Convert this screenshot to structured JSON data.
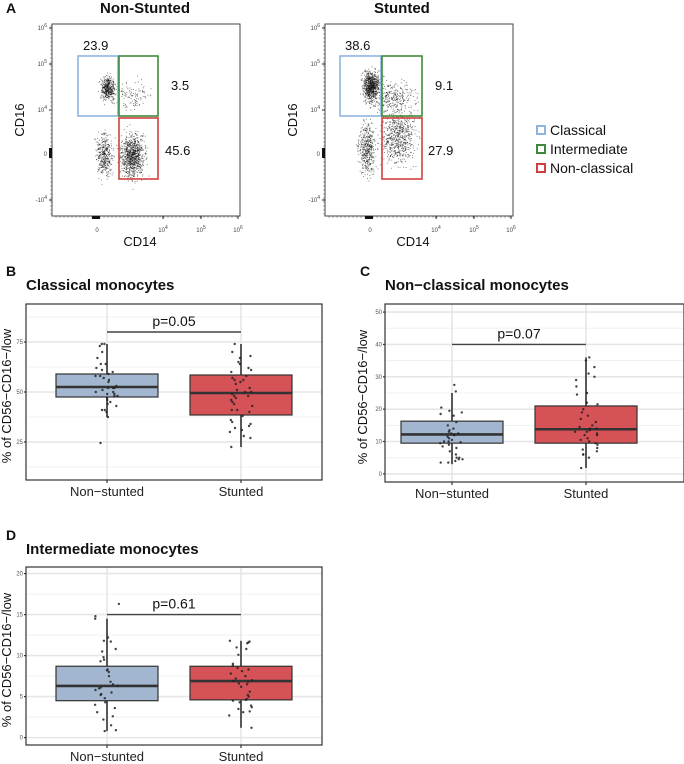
{
  "panel_a": {
    "letter": "A",
    "legend": [
      {
        "label": "Classical",
        "color": "#8fb4df"
      },
      {
        "label": "Intermediate",
        "color": "#3f8a3a"
      },
      {
        "label": "Non-classical",
        "color": "#d04040"
      }
    ],
    "plots": [
      {
        "title": "Non-Stunted",
        "xlabel": "CD14",
        "ylabel": "CD16",
        "x_ticks": [
          "0",
          "10^4",
          "10^5",
          "10^6"
        ],
        "y_ticks": [
          "10^6",
          "10^5",
          "10^4",
          "0",
          "-10^4"
        ],
        "gates": {
          "classical": "23.9",
          "intermediate": "3.5",
          "non_classical": "45.6"
        }
      },
      {
        "title": "Stunted",
        "xlabel": "CD14",
        "ylabel": "CD16",
        "x_ticks": [
          "0",
          "10^4",
          "10^5",
          "10^6"
        ],
        "y_ticks": [
          "10^6",
          "10^5",
          "10^4",
          "0",
          "-10^4"
        ],
        "gates": {
          "classical": "38.6",
          "intermediate": "9.1",
          "non_classical": "27.9"
        }
      }
    ]
  },
  "colors": {
    "non_stunted": "#a3b6d0",
    "stunted": "#d55257",
    "grid": "#ebebeb",
    "frame": "#333333"
  },
  "chart_data": [
    {
      "type": "box",
      "letter": "B",
      "title": "Classical monocytes",
      "xlabel": "",
      "ylabel": "% of CD56−CD16−/low",
      "categories": [
        "Non−stunted",
        "Stunted"
      ],
      "ylim": [
        6,
        94
      ],
      "y_ticks": [
        25,
        50,
        75
      ],
      "grid": true,
      "pvalue": "p=0.05",
      "bracket_y": 80,
      "series": [
        {
          "name": "Non−stunted",
          "q1": 47.5,
          "median": 52.5,
          "q3": 59,
          "whisker_low": 37.5,
          "whisker_high": 74,
          "points": [
            73,
            70,
            67,
            64,
            64,
            74,
            74,
            62,
            61,
            60,
            59,
            58,
            58,
            57,
            56,
            55,
            53,
            52,
            52,
            52,
            51,
            50,
            50,
            49,
            49,
            48,
            48,
            47,
            46,
            45,
            44,
            43,
            41,
            41,
            40,
            37.5,
            24.5
          ]
        },
        {
          "name": "Stunted",
          "q1": 38.5,
          "median": 49.5,
          "q3": 58.5,
          "whisker_low": 22.5,
          "whisker_high": 74,
          "points": [
            74,
            70,
            68,
            67,
            65,
            64,
            62,
            61,
            60,
            58,
            57,
            56,
            56,
            55,
            54,
            52,
            51,
            50,
            50,
            49,
            48,
            48,
            47,
            46,
            45,
            44,
            43,
            41,
            41,
            40,
            38,
            36,
            35,
            34,
            33,
            32,
            31,
            30,
            28,
            27,
            22.5
          ]
        }
      ]
    },
    {
      "type": "box",
      "letter": "C",
      "title": "Non−classical monocytes",
      "xlabel": "",
      "ylabel": "% of CD56−CD16−/low",
      "categories": [
        "Non−stunted",
        "Stunted"
      ],
      "ylim": [
        -2.5,
        52.5
      ],
      "y_ticks": [
        0,
        10,
        20,
        30,
        40,
        50
      ],
      "grid": true,
      "pvalue": "p=0.07",
      "bracket_y": 40,
      "series": [
        {
          "name": "Non−stunted",
          "q1": 9.5,
          "median": 12.2,
          "q3": 16.3,
          "whisker_low": 3,
          "whisker_high": 25,
          "points": [
            27.5,
            25.5,
            20.5,
            19.5,
            19,
            18.5,
            18,
            16,
            15,
            14,
            13.5,
            13,
            12.5,
            12.5,
            12,
            12,
            11.5,
            11,
            10.5,
            10,
            10,
            9.8,
            9.5,
            9,
            8.5,
            8,
            7,
            6,
            5,
            5,
            4.5,
            4.5,
            4,
            3.5,
            3.5
          ]
        },
        {
          "name": "Stunted",
          "q1": 9.5,
          "median": 13.8,
          "q3": 21,
          "whisker_low": 1.8,
          "whisker_high": 36,
          "points": [
            36,
            35,
            33,
            31,
            30,
            29,
            27,
            25,
            24.5,
            22,
            21.5,
            20,
            19,
            18,
            17,
            16,
            15,
            14.5,
            14,
            14,
            13.5,
            13,
            13,
            12.5,
            12,
            12,
            11,
            10.5,
            10,
            9.5,
            9,
            8,
            7.5,
            7,
            6,
            6,
            5,
            1.8
          ]
        }
      ]
    },
    {
      "type": "box",
      "letter": "D",
      "title": "Intermediate monocytes",
      "xlabel": "",
      "ylabel": "% of CD56−CD16−/low",
      "categories": [
        "Non−stunted",
        "Stunted"
      ],
      "ylim": [
        -0.9,
        20.8
      ],
      "y_ticks": [
        0,
        5,
        10,
        15,
        20
      ],
      "grid": true,
      "pvalue": "p=0.61",
      "bracket_y": 15,
      "series": [
        {
          "name": "Non−stunted",
          "q1": 4.5,
          "median": 6.3,
          "q3": 8.7,
          "whisker_low": 0.8,
          "whisker_high": 14.5,
          "points": [
            16.3,
            14.8,
            14.5,
            12.2,
            11.8,
            11.7,
            10.8,
            10.5,
            9.8,
            9.5,
            9.3,
            8.3,
            8.2,
            8,
            7.5,
            6.8,
            6.5,
            6.3,
            6.1,
            6,
            5.8,
            5.5,
            5.3,
            5.2,
            4.8,
            4.3,
            4,
            3.6,
            3.1,
            2.6,
            2.2,
            1.5,
            0.9,
            0.8
          ]
        },
        {
          "name": "Stunted",
          "q1": 4.6,
          "median": 6.9,
          "q3": 8.7,
          "whisker_low": 1.2,
          "whisker_high": 11.8,
          "points": [
            11.8,
            11.7,
            11.6,
            11.5,
            11,
            10.8,
            10.1,
            9,
            8.8,
            8.5,
            8.3,
            8.1,
            7.8,
            7.5,
            7.2,
            7,
            6.9,
            6.8,
            6.6,
            6.5,
            6.2,
            5.6,
            5.2,
            5,
            4.7,
            4.6,
            4.5,
            4.3,
            3.9,
            3.7,
            3.5,
            3.2,
            3.1,
            2.7,
            1.2
          ]
        }
      ]
    }
  ]
}
